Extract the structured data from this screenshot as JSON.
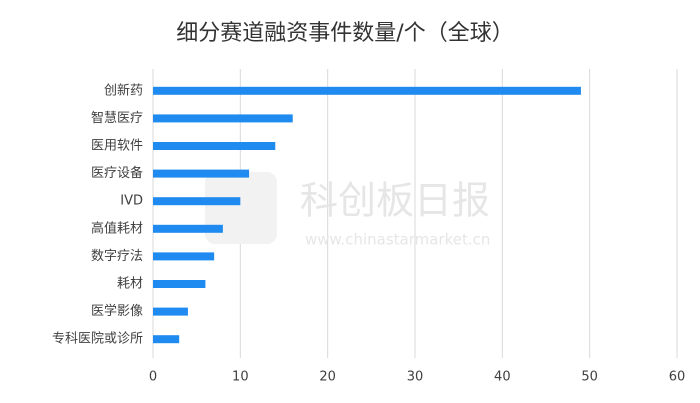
{
  "chart_data": {
    "type": "bar",
    "orientation": "horizontal",
    "title": "细分赛道融资事件数量/个（全球）",
    "categories": [
      "创新药",
      "智慧医疗",
      "医用软件",
      "医疗设备",
      "IVD",
      "高值耗材",
      "数字疗法",
      "耗材",
      "医学影像",
      "专科医院或诊所"
    ],
    "values": [
      49,
      16,
      14,
      11,
      10,
      8,
      7,
      6,
      4,
      3
    ],
    "color": "#1f8bf0",
    "xlim": [
      0,
      60
    ],
    "xticks": [
      0,
      10,
      20,
      30,
      40,
      50,
      60
    ],
    "grid": true,
    "watermark": {
      "name": "科创板日报",
      "url": "www.chinastarmarket.cn"
    }
  }
}
